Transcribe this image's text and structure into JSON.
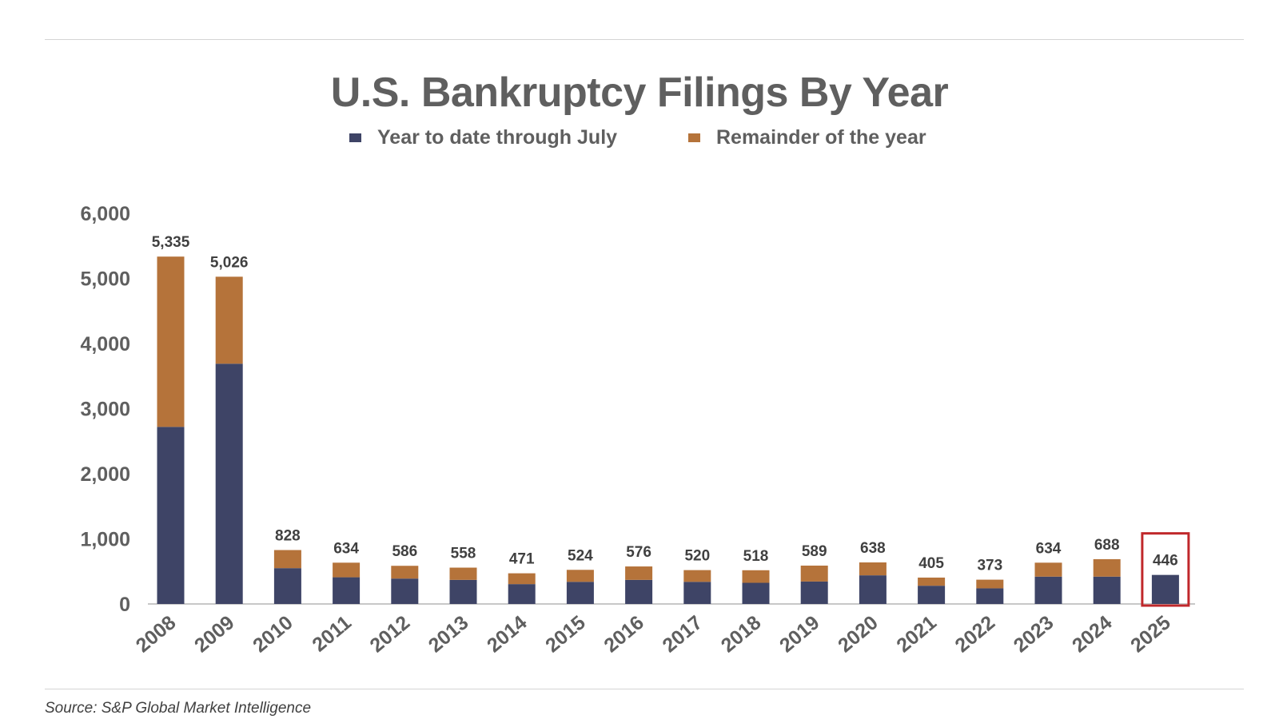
{
  "chart_data": {
    "type": "bar",
    "stacked": true,
    "title": "U.S. Bankruptcy Filings By Year",
    "xlabel": "",
    "ylabel": "",
    "ylim": [
      0,
      6000
    ],
    "yticks": [
      "0",
      "1,000",
      "2,000",
      "3,000",
      "4,000",
      "5,000",
      "6,000"
    ],
    "grid": false,
    "legend_position": "top",
    "categories": [
      "2008",
      "2009",
      "2010",
      "2011",
      "2012",
      "2013",
      "2014",
      "2015",
      "2016",
      "2017",
      "2018",
      "2019",
      "2020",
      "2021",
      "2022",
      "2023",
      "2024",
      "2025"
    ],
    "series": [
      {
        "name": "Year to date through July",
        "color": "#3e4466",
        "values": [
          2720,
          3690,
          550,
          410,
          390,
          370,
          305,
          340,
          370,
          340,
          325,
          345,
          440,
          280,
          240,
          420,
          420,
          446
        ]
      },
      {
        "name": "Remainder of the year",
        "color": "#b5733a",
        "values": [
          2615,
          1336,
          278,
          224,
          196,
          188,
          166,
          184,
          206,
          180,
          193,
          244,
          198,
          125,
          133,
          214,
          268,
          0
        ]
      }
    ],
    "totals": [
      5335,
      5026,
      828,
      634,
      586,
      558,
      471,
      524,
      576,
      520,
      518,
      589,
      638,
      405,
      373,
      634,
      688,
      446
    ],
    "total_labels": [
      "5,335",
      "5,026",
      "828",
      "634",
      "586",
      "558",
      "471",
      "524",
      "576",
      "520",
      "518",
      "589",
      "638",
      "405",
      "373",
      "634",
      "688",
      "446"
    ],
    "highlight": {
      "category": "2025",
      "color": "#c0282b"
    }
  },
  "source": "Source: S&P Global Market Intelligence"
}
